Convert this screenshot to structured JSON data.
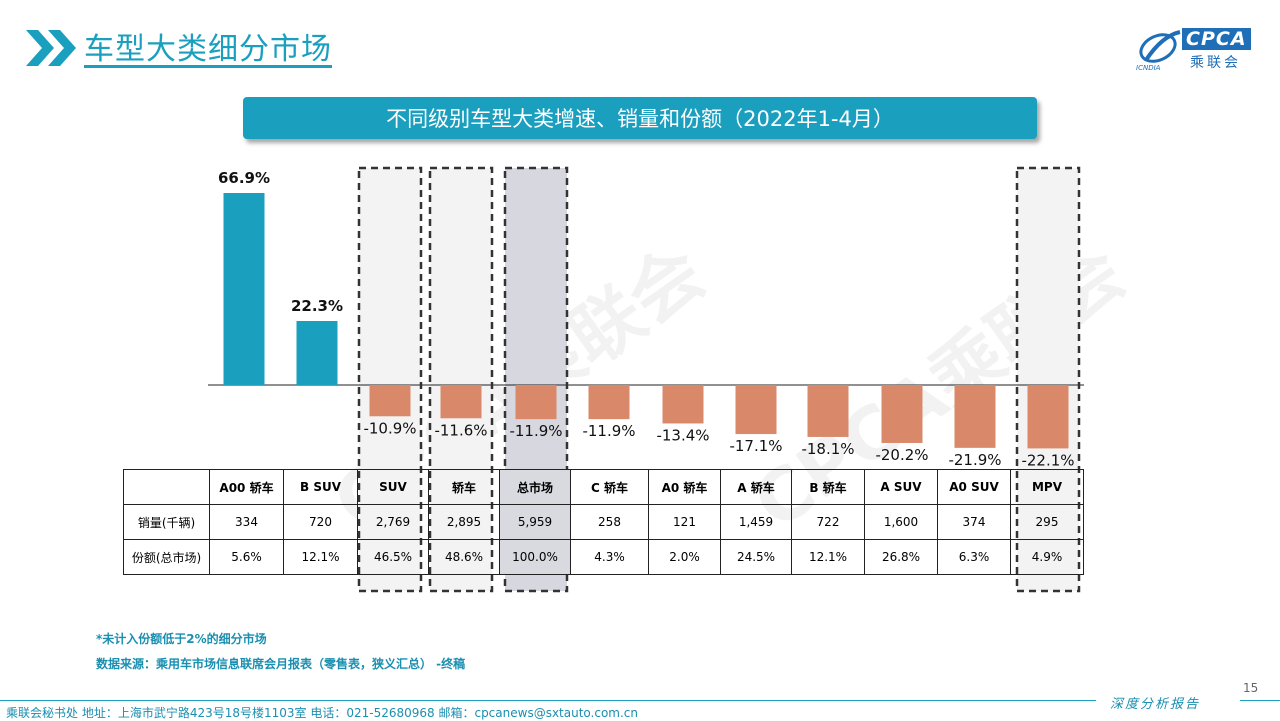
{
  "header": {
    "title": "车型大类细分市场",
    "logo_text": "CPCA",
    "logo_sub": "乘联会",
    "logo_small": "ICNDIA"
  },
  "banner": {
    "title": "不同级别车型大类增速、销量和份额（2022年1-4月）"
  },
  "chart_data": {
    "type": "bar",
    "title": "不同级别车型大类增速、销量和份额（2022年1-4月）",
    "categories": [
      "A00 轿车",
      "B SUV",
      "SUV",
      "轿车",
      "总市场",
      "C 轿车",
      "A0 轿车",
      "A 轿车",
      "B 轿车",
      "A SUV",
      "A0 SUV",
      "MPV"
    ],
    "series": [
      {
        "values": [
          66.9,
          22.3,
          -10.9,
          -11.6,
          -11.9,
          -11.9,
          -13.4,
          -17.1,
          -18.1,
          -20.2,
          -21.9,
          -22.1
        ]
      }
    ],
    "value_labels": [
      "66.9%",
      "22.3%",
      "-10.9%",
      "-11.6%",
      "-11.9%",
      "-11.9%",
      "-13.4%",
      "-17.1%",
      "-18.1%",
      "-20.2%",
      "-21.9%",
      "-22.1%"
    ],
    "unit": "%",
    "positive_color": "#1a9fbf",
    "negative_color": "#d9896a",
    "highlight_boxes": [
      "SUV",
      "轿车",
      "总市场",
      "MPV"
    ],
    "shaded_category": "总市场",
    "grid": false
  },
  "table": {
    "rows": [
      {
        "label": "",
        "cells": [
          "A00 轿车",
          "B SUV",
          "SUV",
          "轿车",
          "总市场",
          "C 轿车",
          "A0 轿车",
          "A 轿车",
          "B 轿车",
          "A SUV",
          "A0 SUV",
          "MPV"
        ]
      },
      {
        "label": "销量(千辆)",
        "cells": [
          "334",
          "720",
          "2,769",
          "2,895",
          "5,959",
          "258",
          "121",
          "1,459",
          "722",
          "1,600",
          "374",
          "295"
        ]
      },
      {
        "label": "份额(总市场)",
        "cells": [
          "5.6%",
          "12.1%",
          "46.5%",
          "48.6%",
          "100.0%",
          "4.3%",
          "2.0%",
          "24.5%",
          "12.1%",
          "26.8%",
          "6.3%",
          "4.9%"
        ]
      }
    ]
  },
  "notes": {
    "note1": "*未计入份额低于2%的细分市场",
    "note2": "数据来源：乘用车市场信息联席会月报表（零售表，狭义汇总）  -终稿"
  },
  "page_number": "15",
  "footer": {
    "text": "乘联会秘书处    地址：上海市武宁路423号18号楼1103室    电话：021-52680968    邮箱：cpcanews@sxtauto.com.cn",
    "report": "深度分析报告"
  },
  "watermark": "CPCA乘联会"
}
